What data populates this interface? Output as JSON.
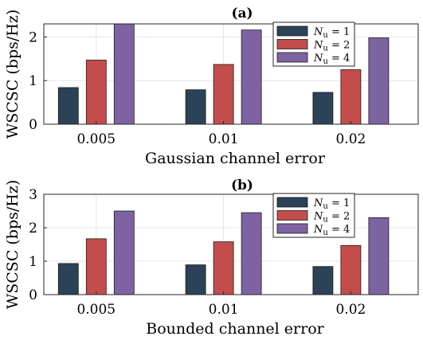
{
  "chart_data": [
    {
      "type": "bar",
      "title": "(a)",
      "xlabel": "Gaussian channel error",
      "ylabel": "WSCSC (bps/Hz)",
      "categories": [
        "0.005",
        "0.01",
        "0.02"
      ],
      "ylim": [
        0,
        2.3
      ],
      "yticks": [
        "0",
        "1",
        "2"
      ],
      "grid": true,
      "legend_position": "top-right",
      "series": [
        {
          "name": "N_u = 1",
          "legend_base": "N",
          "legend_sub": "u",
          "legend_rest": " = 1",
          "color": "#2b4257",
          "values": [
            0.84,
            0.79,
            0.73
          ]
        },
        {
          "name": "N_u = 2",
          "legend_base": "N",
          "legend_sub": "u",
          "legend_rest": " = 2",
          "color": "#c34d4c",
          "values": [
            1.47,
            1.37,
            1.25
          ]
        },
        {
          "name": "N_u = 4",
          "legend_base": "N",
          "legend_sub": "u",
          "legend_rest": " = 4",
          "color": "#7e63a3",
          "values": [
            2.3,
            2.16,
            1.98
          ]
        }
      ]
    },
    {
      "type": "bar",
      "title": "(b)",
      "xlabel": "Bounded channel error",
      "ylabel": "WSCSC (bps/Hz)",
      "categories": [
        "0.005",
        "0.01",
        "0.02"
      ],
      "ylim": [
        0,
        3
      ],
      "yticks": [
        "0",
        "1",
        "2",
        "3"
      ],
      "grid": true,
      "legend_position": "top-right",
      "series": [
        {
          "name": "N_u = 1",
          "legend_base": "N",
          "legend_sub": "u",
          "legend_rest": " = 1",
          "color": "#2b4257",
          "values": [
            0.93,
            0.89,
            0.84
          ]
        },
        {
          "name": "N_u = 2",
          "legend_base": "N",
          "legend_sub": "u",
          "legend_rest": " = 2",
          "color": "#c34d4c",
          "values": [
            1.67,
            1.58,
            1.47
          ]
        },
        {
          "name": "N_u = 4",
          "legend_base": "N",
          "legend_sub": "u",
          "legend_rest": " = 4",
          "color": "#7e63a3",
          "values": [
            2.5,
            2.45,
            2.3
          ]
        }
      ]
    }
  ]
}
